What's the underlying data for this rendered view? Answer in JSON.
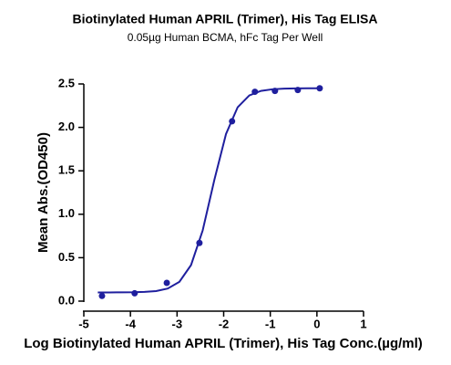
{
  "chart_data": {
    "type": "scatter",
    "title": "Biotinylated Human APRIL (Trimer), His Tag ELISA",
    "subtitle": "0.05µg Human BCMA, hFc Tag Per Well",
    "x_label": "Log Biotinylated Human APRIL (Trimer), His Tag Conc.(µg/ml)",
    "y_label": "Mean Abs.(OD450)",
    "xlim": [
      -5,
      1
    ],
    "xticks": [
      -5,
      -4,
      -3,
      -2,
      -1,
      0,
      1
    ],
    "ylim": [
      0,
      2.5
    ],
    "yticks": [
      {
        "value": 0,
        "label": "0.0"
      },
      {
        "value": 0.5,
        "label": "0.5"
      },
      {
        "value": 1,
        "label": "1.0"
      },
      {
        "value": 1.5,
        "label": "1.5"
      },
      {
        "value": 2,
        "label": "2.0"
      },
      {
        "value": 2.5,
        "label": "2.5"
      }
    ],
    "grid": false,
    "series": [
      {
        "color": "#1f1f9e",
        "mode": "markers",
        "x": [
          -4.61,
          -3.91,
          -3.22,
          -2.52,
          -1.82,
          -1.33,
          -0.9,
          -0.41,
          0.06
        ],
        "values": [
          0.06,
          0.09,
          0.21,
          0.67,
          2.07,
          2.41,
          2.42,
          2.43,
          2.45
        ]
      },
      {
        "color": "#1f1f9e",
        "mode": "line",
        "x": [
          -4.7,
          -4.45,
          -4.2,
          -3.95,
          -3.7,
          -3.45,
          -3.2,
          -2.95,
          -2.7,
          -2.45,
          -2.2,
          -1.95,
          -1.7,
          -1.45,
          -1.2,
          -0.95,
          -0.7,
          -0.45,
          -0.2,
          0.05
        ],
        "values": [
          0.1,
          0.1,
          0.101,
          0.102,
          0.106,
          0.116,
          0.145,
          0.222,
          0.415,
          0.814,
          1.396,
          1.924,
          2.232,
          2.368,
          2.42,
          2.439,
          2.446,
          2.449,
          2.45,
          2.45
        ]
      }
    ]
  }
}
